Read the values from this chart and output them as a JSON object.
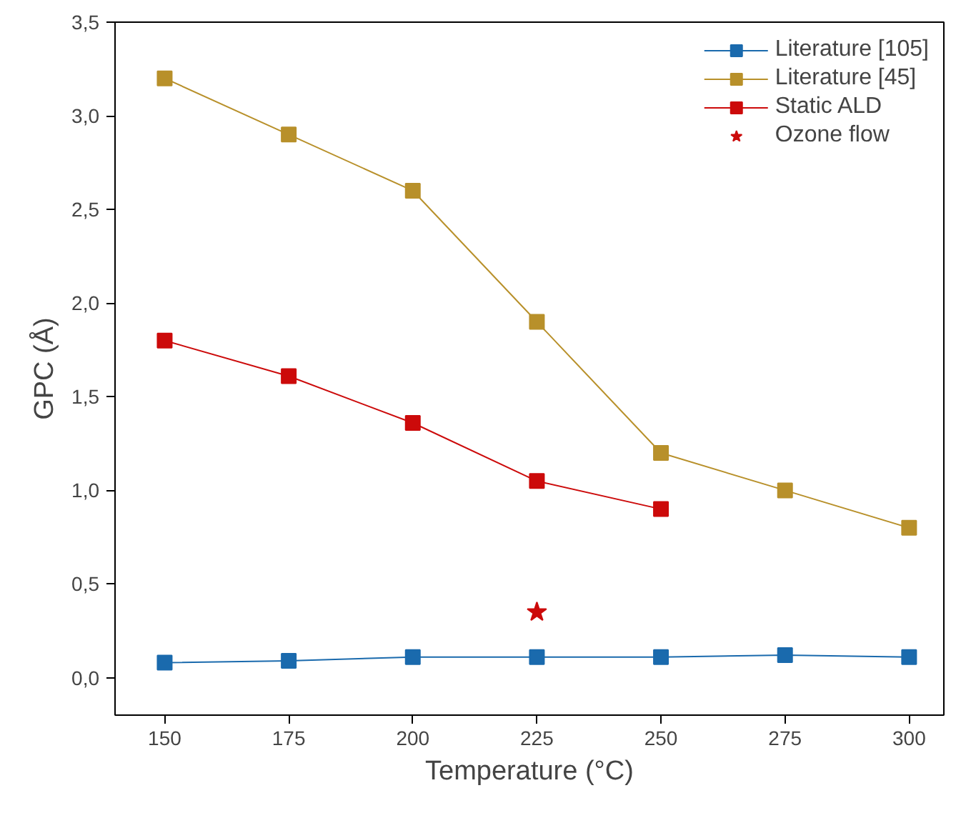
{
  "chart_data": {
    "type": "line",
    "xlabel": "Temperature (°C)",
    "ylabel": "GPC (Å)",
    "x": [
      150,
      175,
      200,
      225,
      250,
      275,
      300
    ],
    "xlim": [
      140,
      307
    ],
    "xticks": [
      150,
      175,
      200,
      225,
      250,
      275,
      300
    ],
    "ylim": [
      -0.2,
      3.5
    ],
    "yticks": [
      {
        "value": 0,
        "label": "0,0"
      },
      {
        "value": 0.5,
        "label": "0,5"
      },
      {
        "value": 1,
        "label": "1,0"
      },
      {
        "value": 1.5,
        "label": "1,5"
      },
      {
        "value": 2,
        "label": "2,0"
      },
      {
        "value": 2.5,
        "label": "2,5"
      },
      {
        "value": 3,
        "label": "3,0"
      },
      {
        "value": 3.5,
        "label": "3,5"
      }
    ],
    "series": [
      {
        "name": "Literature [105]",
        "color": "#1a6aad",
        "marker": "square",
        "values": [
          0.08,
          0.09,
          0.11,
          0.11,
          0.11,
          0.12,
          0.11
        ]
      },
      {
        "name": "Literature [45]",
        "color": "#b8902a",
        "marker": "square",
        "values": [
          3.2,
          2.9,
          2.6,
          1.9,
          1.2,
          1.0,
          0.8
        ]
      },
      {
        "name": "Static ALD",
        "color": "#cc0a0a",
        "marker": "square",
        "values": [
          1.8,
          1.61,
          1.36,
          1.05,
          0.9,
          null,
          null
        ]
      },
      {
        "name": "Ozone flow",
        "type": "scatter",
        "color": "#cc0a0a",
        "marker": "star",
        "x": [
          225
        ],
        "values": [
          0.35
        ]
      }
    ],
    "grid": false,
    "legend": "top right"
  }
}
